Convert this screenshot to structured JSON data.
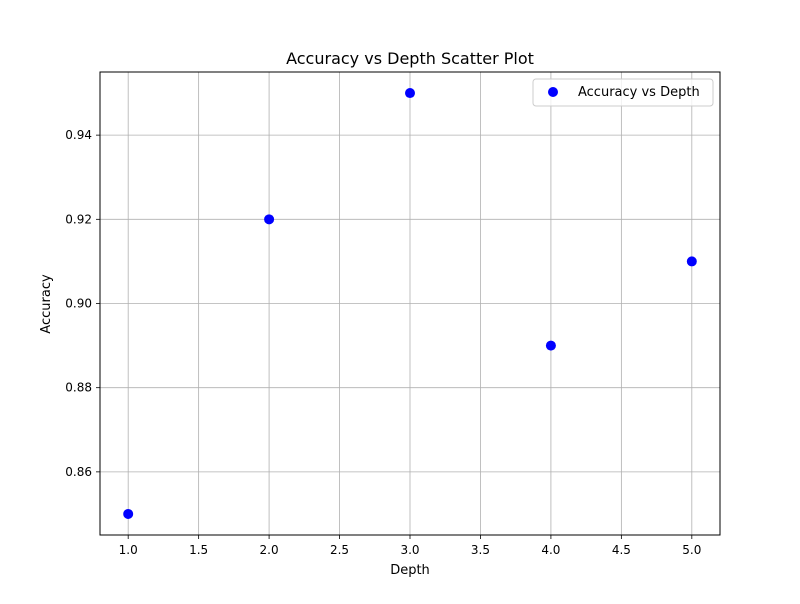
{
  "chart_data": {
    "type": "scatter",
    "title": "Accuracy vs Depth Scatter Plot",
    "xlabel": "Depth",
    "ylabel": "Accuracy",
    "xlim": [
      0.8,
      5.2
    ],
    "ylim": [
      0.845,
      0.955
    ],
    "x_ticks": [
      1.0,
      1.5,
      2.0,
      2.5,
      3.0,
      3.5,
      4.0,
      4.5,
      5.0
    ],
    "x_tick_labels": [
      "1.0",
      "1.5",
      "2.0",
      "2.5",
      "3.0",
      "3.5",
      "4.0",
      "4.5",
      "5.0"
    ],
    "y_ticks": [
      0.86,
      0.88,
      0.9,
      0.92,
      0.94
    ],
    "y_tick_labels": [
      "0.86",
      "0.88",
      "0.90",
      "0.92",
      "0.94"
    ],
    "grid": true,
    "legend_position": "top-right",
    "series": [
      {
        "name": "Accuracy vs Depth",
        "color": "#0000ff",
        "x": [
          1,
          2,
          3,
          4,
          5
        ],
        "y": [
          0.85,
          0.92,
          0.95,
          0.89,
          0.91
        ]
      }
    ]
  }
}
